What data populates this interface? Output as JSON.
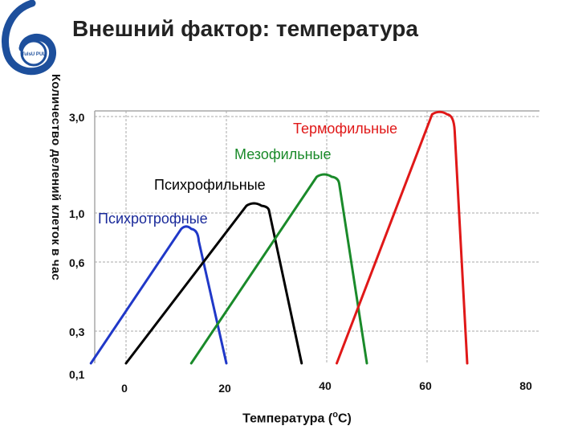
{
  "page": {
    "title": "Внешний фактор: температура",
    "logo_text": "TulsU PUL",
    "colors": {
      "logo": "#1d4f9c",
      "grid": "#a8a8a8",
      "text": "#111111"
    }
  },
  "chart_data": {
    "type": "line",
    "title": "",
    "xlabel": "Температура (oC)",
    "xlabel_parts": [
      "Температура (",
      "o",
      "С)"
    ],
    "ylabel": "Количество делений клеток в час",
    "xlim": [
      -2,
      82
    ],
    "x_ticks": [
      {
        "value": 0,
        "label": "0"
      },
      {
        "value": 20,
        "label": "20"
      },
      {
        "value": 40,
        "label": "40"
      },
      {
        "value": 60,
        "label": "60"
      },
      {
        "value": 80,
        "label": "80"
      }
    ],
    "y_ticks": [
      {
        "label": "3,0"
      },
      {
        "label": "1,0"
      },
      {
        "label": "0,6"
      },
      {
        "label": "0,3"
      },
      {
        "label": "0,1"
      }
    ],
    "grid": true,
    "series": [
      {
        "name": "Психротрофные",
        "color": "#2038c8",
        "points": [
          [
            -7,
            0.1
          ],
          [
            11,
            0.87
          ],
          [
            13,
            0.87
          ],
          [
            14.5,
            0.77
          ],
          [
            20,
            0.1
          ]
        ]
      },
      {
        "name": "Психрофильные",
        "color": "#000000",
        "points": [
          [
            0,
            0.1
          ],
          [
            24,
            1.15
          ],
          [
            27,
            1.15
          ],
          [
            28.5,
            1.05
          ],
          [
            35,
            0.1
          ]
        ]
      },
      {
        "name": "Мезофильные",
        "color": "#1a8a2a",
        "points": [
          [
            13,
            0.1
          ],
          [
            38,
            1.75
          ],
          [
            41,
            1.75
          ],
          [
            42.5,
            1.6
          ],
          [
            48,
            0.1
          ]
        ]
      },
      {
        "name": "Термофильные",
        "color": "#e01818",
        "points": [
          [
            42,
            0.1
          ],
          [
            61,
            3.05
          ],
          [
            64,
            3.05
          ],
          [
            65.5,
            2.7
          ],
          [
            68,
            0.1
          ]
        ]
      }
    ],
    "annotations": [
      {
        "text": "Психротрофные",
        "series": "Психротрофные"
      },
      {
        "text": "Психрофильные",
        "series": "Психрофильные"
      },
      {
        "text": "Мезофильные",
        "series": "Мезофильные"
      },
      {
        "text": "Термофильные",
        "series": "Термофильные"
      }
    ]
  }
}
